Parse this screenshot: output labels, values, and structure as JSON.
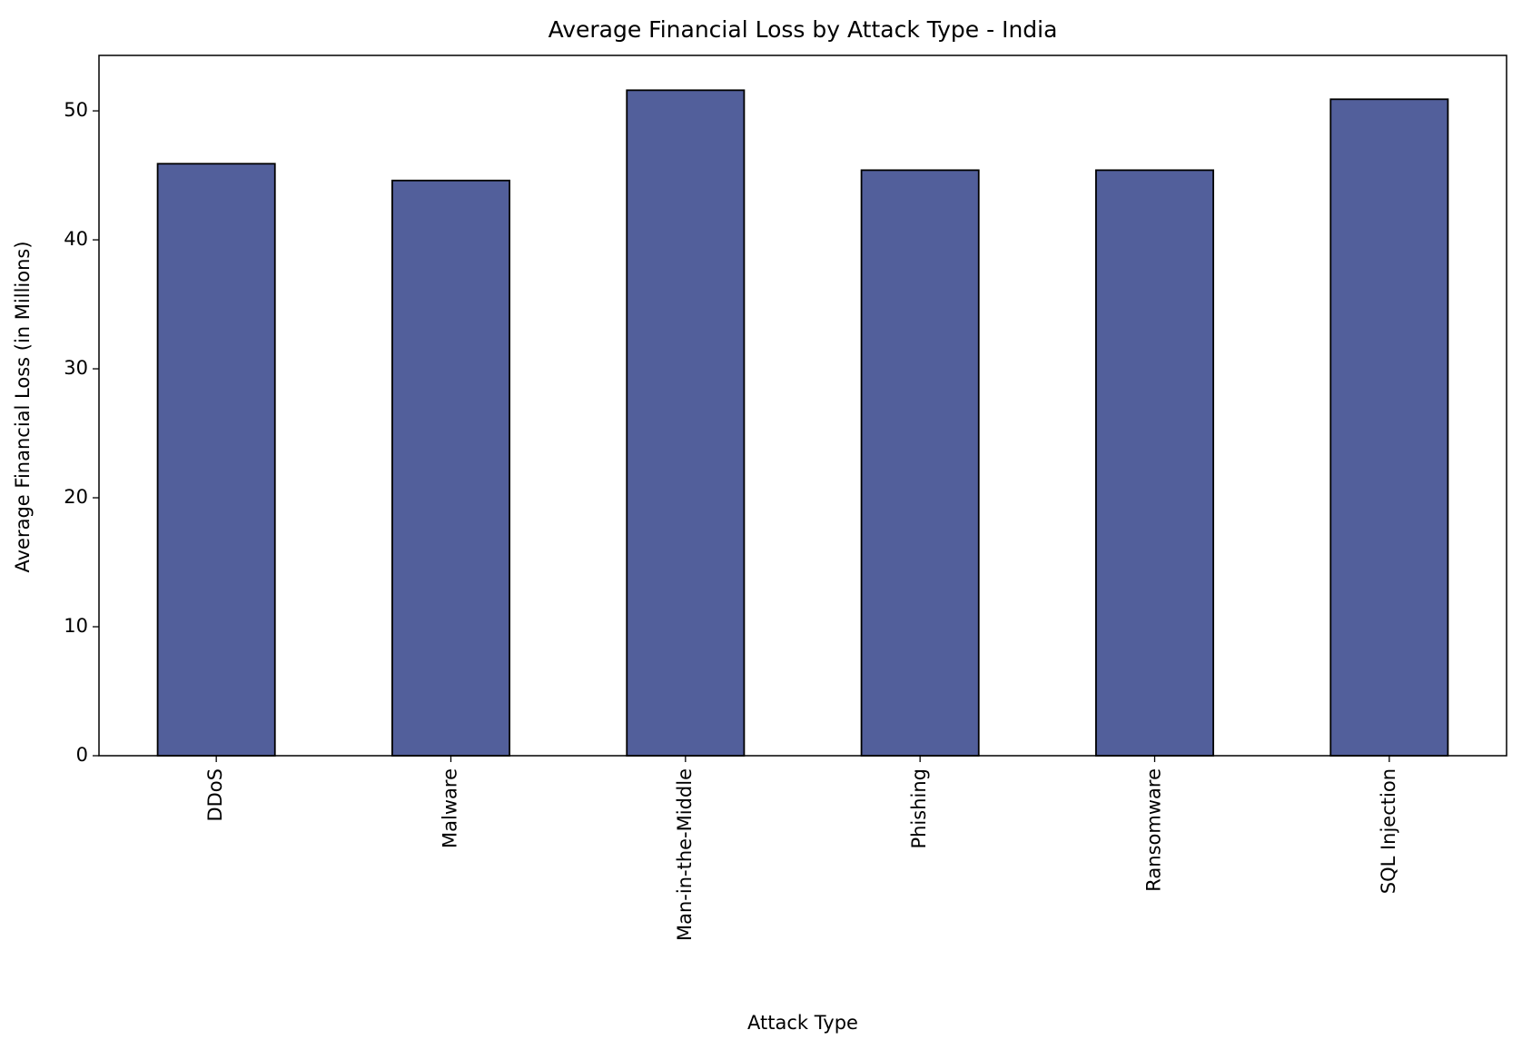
{
  "chart_data": {
    "type": "bar",
    "title": "Average Financial Loss by Attack Type - India",
    "x_label": "Attack Type",
    "y_label": "Average Financial Loss (in Millions)",
    "categories": [
      "DDoS",
      "Malware",
      "Man-in-the-Middle",
      "Phishing",
      "Ransomware",
      "SQL Injection"
    ],
    "values": [
      45.9,
      44.6,
      51.6,
      45.4,
      45.4,
      50.9
    ],
    "color": "#525f9b",
    "ylim": [
      0,
      54.3
    ],
    "yticks": [
      0,
      10,
      20,
      30,
      40,
      50
    ],
    "grid": false
  }
}
